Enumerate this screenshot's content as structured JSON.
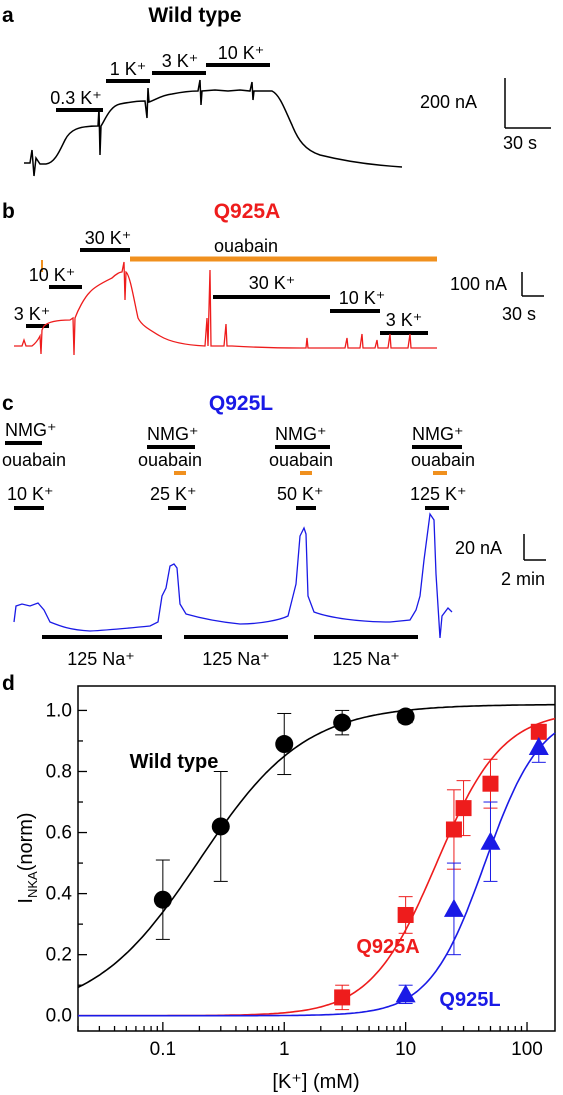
{
  "colors": {
    "black": "#000000",
    "red": "#ee1c1c",
    "blue": "#1a1ae6",
    "orange": "#f0901e"
  },
  "panels": {
    "a": {
      "letter": "a",
      "title": "Wild type",
      "bars": [
        "0.3 K⁺",
        "1 K⁺",
        "3 K⁺",
        "10 K⁺"
      ],
      "scale_y": "200 nA",
      "scale_x": "30 s"
    },
    "b": {
      "letter": "b",
      "title": "Q925A",
      "bars": [
        "3 K⁺",
        "10 K⁺",
        "30 K⁺",
        "30 K⁺",
        "10 K⁺",
        "3 K⁺"
      ],
      "drug": "ouabain",
      "scale_y": "100 nA",
      "scale_x": "30 s"
    },
    "c": {
      "letter": "c",
      "title": "Q925L",
      "groups": [
        {
          "ion": "NMG⁺",
          "drug": "ouabain",
          "k": "10 K⁺"
        },
        {
          "ion": "NMG⁺",
          "drug": "ouabain",
          "k": "25 K⁺"
        },
        {
          "ion": "NMG⁺",
          "drug": "ouabain",
          "k": "50 K⁺"
        },
        {
          "ion": "NMG⁺",
          "drug": "ouabain",
          "k": "125 K⁺"
        }
      ],
      "na_bars": [
        "125 Na⁺",
        "125 Na⁺",
        "125 Na⁺"
      ],
      "scale_y": "20 nA",
      "scale_x": "2 min"
    },
    "d": {
      "letter": "d"
    }
  },
  "chart_data": {
    "type": "scatter",
    "xlabel": "[K⁺] (mM)",
    "ylabel": "I",
    "ylabel_sub": "NKA",
    "ylabel_suffix": "(norm)",
    "xscale": "log",
    "xlim": [
      0.02,
      170
    ],
    "ylim": [
      -0.05,
      1.08
    ],
    "xticks": [
      0.1,
      1,
      10,
      100
    ],
    "xtick_labels": [
      "0.1",
      "1",
      "10",
      "100"
    ],
    "yticks": [
      0.0,
      0.2,
      0.4,
      0.6,
      0.8,
      1.0
    ],
    "ytick_labels": [
      "0.0",
      "0.2",
      "0.4",
      "0.6",
      "0.8",
      "1.0"
    ],
    "series": [
      {
        "name": "Wild type",
        "color": "#000000",
        "marker": "circle",
        "x": [
          0.1,
          0.3,
          1,
          3,
          10
        ],
        "y": [
          0.38,
          0.62,
          0.89,
          0.96,
          0.98
        ],
        "err": [
          0.13,
          0.18,
          0.1,
          0.04,
          0.02
        ],
        "fit": {
          "imax": 1.02,
          "k05": 0.2,
          "n": 1.0
        }
      },
      {
        "name": "Q925A",
        "color": "#ee1c1c",
        "marker": "square",
        "x": [
          3,
          10,
          25,
          30,
          50,
          125
        ],
        "y": [
          0.06,
          0.33,
          0.61,
          0.68,
          0.76,
          0.93
        ],
        "err": [
          0.04,
          0.06,
          0.13,
          0.09,
          0.08,
          0.02
        ],
        "fit": {
          "imax": 1.0,
          "k05": 18,
          "n": 1.6
        }
      },
      {
        "name": "Q925L",
        "color": "#1a1ae6",
        "marker": "triangle",
        "x": [
          10,
          25,
          50,
          125
        ],
        "y": [
          0.07,
          0.35,
          0.57,
          0.88
        ],
        "err": [
          0.03,
          0.15,
          0.13,
          0.05
        ],
        "fit": {
          "imax": 1.0,
          "k05": 45,
          "n": 1.9
        }
      }
    ]
  }
}
